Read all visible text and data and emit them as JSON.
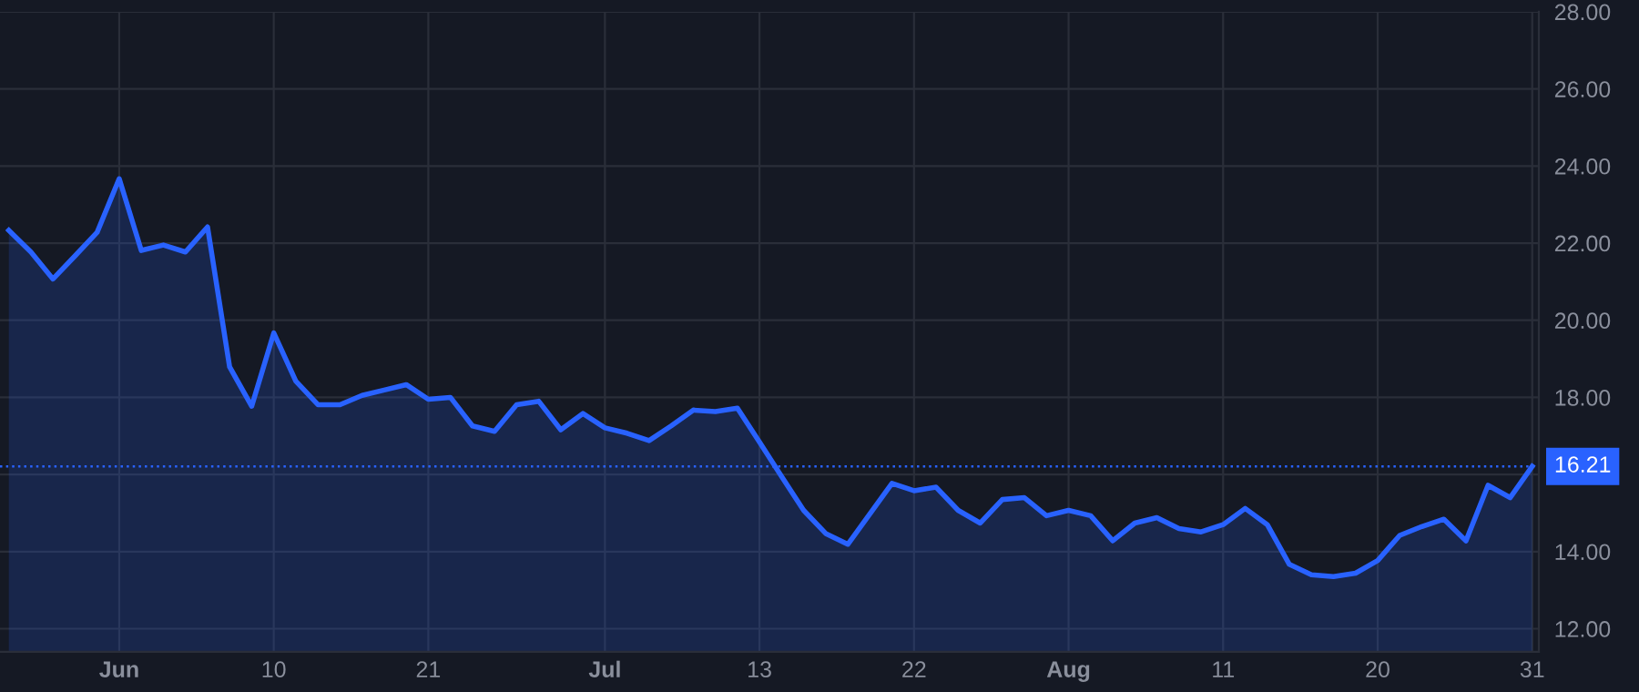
{
  "chart_data": {
    "type": "area",
    "categories": [
      null,
      null,
      null,
      null,
      null,
      "Jun",
      null,
      null,
      null,
      null,
      null,
      null,
      "10",
      null,
      null,
      null,
      null,
      null,
      null,
      "21",
      null,
      null,
      null,
      null,
      null,
      null,
      null,
      "Jul",
      null,
      null,
      null,
      null,
      null,
      null,
      "13",
      null,
      null,
      null,
      null,
      null,
      null,
      "22",
      null,
      null,
      null,
      null,
      null,
      null,
      "Aug",
      null,
      null,
      null,
      null,
      null,
      null,
      "11",
      null,
      null,
      null,
      null,
      null,
      null,
      "20",
      null,
      null,
      null,
      null,
      null,
      null,
      "31"
    ],
    "series": [
      {
        "color": "#2962ff",
        "values": [
          22.33,
          21.77,
          21.07,
          21.67,
          22.28,
          23.67,
          21.81,
          21.95,
          21.77,
          22.42,
          18.79,
          17.77,
          19.67,
          18.42,
          17.81,
          17.81,
          18.05,
          18.19,
          18.33,
          17.95,
          18.0,
          17.26,
          17.12,
          17.81,
          17.9,
          17.16,
          17.58,
          17.21,
          17.07,
          16.88,
          17.26,
          17.67,
          17.63,
          17.72,
          16.84,
          15.95,
          15.07,
          14.47,
          14.19,
          14.98,
          15.77,
          15.58,
          15.67,
          15.07,
          14.74,
          15.35,
          15.4,
          14.93,
          15.07,
          14.93,
          14.28,
          14.74,
          14.88,
          14.6,
          14.51,
          14.7,
          15.12,
          14.7,
          13.67,
          13.4,
          13.35,
          13.44,
          13.77,
          14.42,
          14.65,
          14.84,
          14.28,
          15.72,
          15.4,
          16.21
        ]
      }
    ],
    "ylim": [
      11.4,
      28.0
    ],
    "yticks": [
      {
        "value": 12,
        "label": "12.00"
      },
      {
        "value": 14,
        "label": "14.00"
      },
      {
        "value": 16,
        "label": null
      },
      {
        "value": 18,
        "label": "18.00"
      },
      {
        "value": 20,
        "label": "20.00"
      },
      {
        "value": 22,
        "label": "22.00"
      },
      {
        "value": 24,
        "label": "24.00"
      },
      {
        "value": 26,
        "label": "26.00"
      },
      {
        "value": 28,
        "label": "28.00"
      }
    ],
    "ref_lines": [
      {
        "axis": "y",
        "value": 16.21,
        "label": "16.21",
        "color": "#2962ff",
        "line_style": "dotted"
      }
    ],
    "grid": true,
    "legend": false
  }
}
